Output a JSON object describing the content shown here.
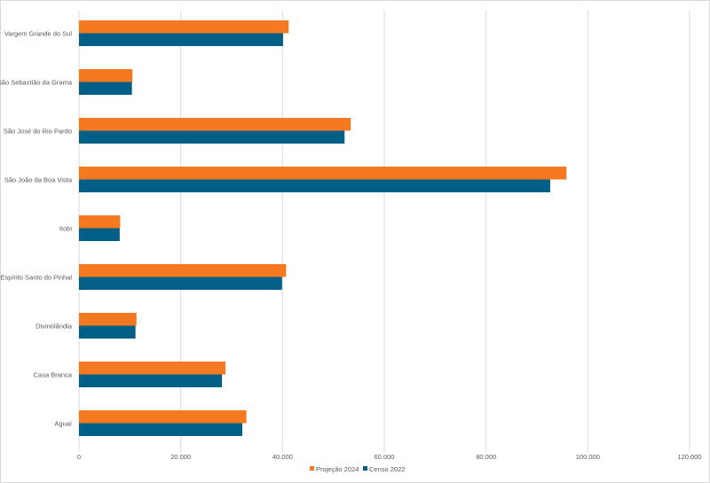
{
  "chart_data": {
    "type": "bar",
    "orientation": "horizontal",
    "title": "",
    "xlabel": "",
    "ylabel": "",
    "categories": [
      "Vargem Grande do Sul",
      "São Sebastião da Grama",
      "São José do Rio Pardo",
      "São João da Boa Vista",
      "Itobi",
      "Espírito Santo do Pinhal",
      "Divinolândia",
      "Casa Branca",
      "Aguaí"
    ],
    "series": [
      {
        "name": "Projeção 2024",
        "color": "#f47920",
        "values": [
          41200,
          10500,
          53400,
          95800,
          8100,
          40700,
          11300,
          28800,
          32900
        ]
      },
      {
        "name": "Censo 2022",
        "color": "#005f86",
        "values": [
          40100,
          10400,
          52200,
          92600,
          8000,
          39900,
          11100,
          28100,
          32100
        ]
      }
    ],
    "xlim": [
      0,
      120000
    ],
    "xticks": [
      0,
      20000,
      40000,
      60000,
      80000,
      100000,
      120000
    ],
    "xtick_labels": [
      "0",
      "20.000",
      "40.000",
      "60.000",
      "80.000",
      "100.000",
      "120.000"
    ],
    "grid": true,
    "legend_position": "bottom"
  }
}
